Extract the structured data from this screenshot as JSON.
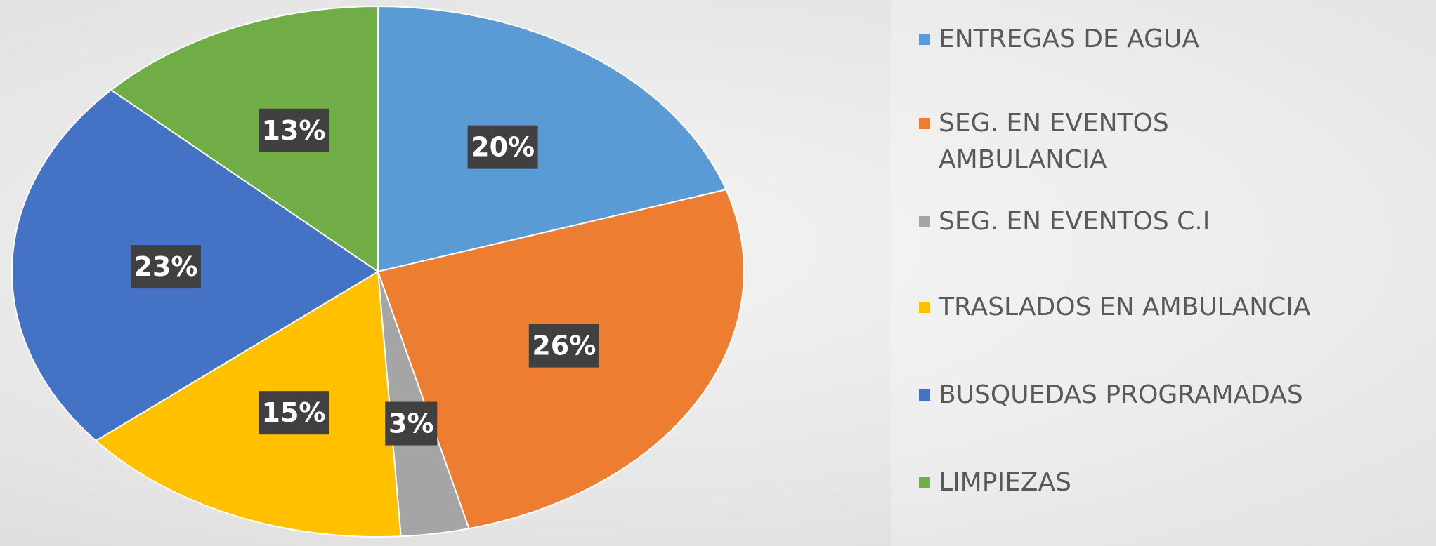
{
  "chart_data": {
    "type": "pie",
    "categories": [
      "ENTREGAS DE AGUA",
      "SEG. EN EVENTOS AMBULANCIA",
      "SEG. EN EVENTOS C.I",
      "TRASLADOS EN AMBULANCIA",
      "BUSQUEDAS PROGRAMADAS",
      "LIMPIEZAS"
    ],
    "values": [
      20,
      26,
      3,
      15,
      23,
      13
    ],
    "value_labels": [
      "20%",
      "26%",
      "3%",
      "15%",
      "23%",
      "13%"
    ],
    "colors": [
      "#5b9bd5",
      "#ed7d31",
      "#a5a5a5",
      "#ffc000",
      "#4472c4",
      "#70ad47"
    ],
    "legend": "right"
  }
}
